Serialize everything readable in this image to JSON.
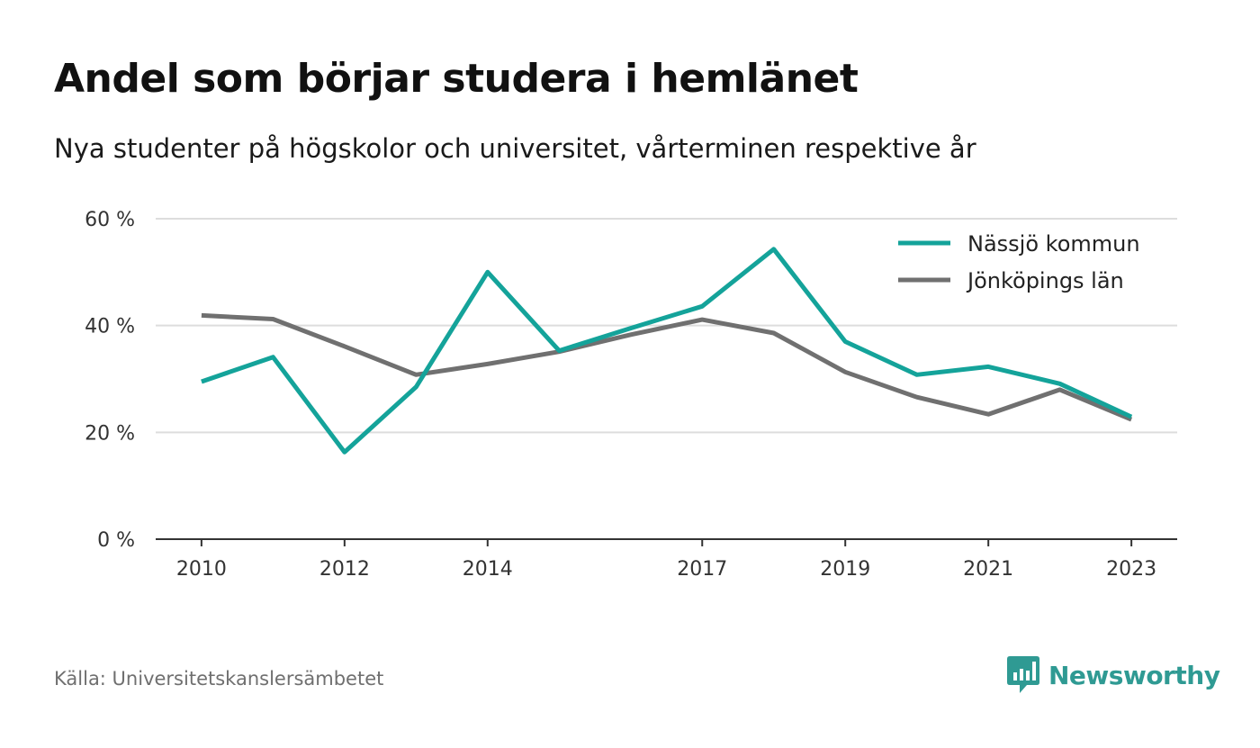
{
  "header": {
    "title": "Andel som börjar studera i hemlänet",
    "subtitle": "Nya studenter på högskolor och universitet, vårterminen respektive år"
  },
  "footer": {
    "source": "Källa: Universitetskanslersämbetet",
    "brand": "Newsworthy",
    "brand_icon": "newsworthy-logo-icon"
  },
  "colors": {
    "nassjo": "#14a39a",
    "jonkoping": "#707070",
    "grid": "#dddddd",
    "axis": "#333333",
    "brand": "#2f9a93"
  },
  "chart_data": {
    "type": "line",
    "title": "Andel som börjar studera i hemlänet",
    "subtitle": "Nya studenter på högskolor och universitet, vårterminen respektive år",
    "x": [
      2010,
      2011,
      2012,
      2013,
      2014,
      2015,
      2016,
      2017,
      2018,
      2019,
      2020,
      2021,
      2022,
      2023
    ],
    "x_tick_labels": [
      "2010",
      "2012",
      "2014",
      "2017",
      "2019",
      "2021",
      "2023"
    ],
    "y_tick_labels": [
      "0 %",
      "20 %",
      "40 %",
      "60 %"
    ],
    "y_ticks": [
      0,
      20,
      40,
      60
    ],
    "ylim": [
      0,
      60
    ],
    "grid": true,
    "legend_position": "top-right",
    "series": [
      {
        "name": "Nässjö kommun",
        "color": "#14a39a",
        "values": [
          29.5,
          34.1,
          16.3,
          28.5,
          50.0,
          35.3,
          39.5,
          43.6,
          54.3,
          37.0,
          30.8,
          32.3,
          29.1,
          22.9
        ]
      },
      {
        "name": "Jönköpings län",
        "color": "#707070",
        "values": [
          41.9,
          41.2,
          36.1,
          30.8,
          32.8,
          35.1,
          38.3,
          41.1,
          38.6,
          31.3,
          26.6,
          23.4,
          28.0,
          22.4
        ]
      }
    ]
  }
}
